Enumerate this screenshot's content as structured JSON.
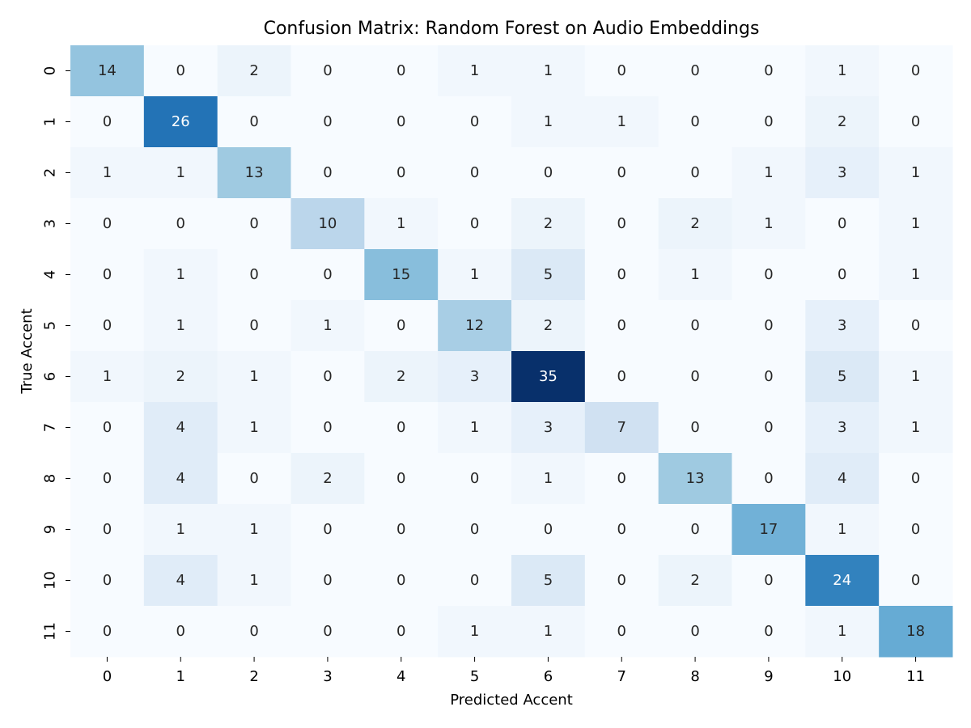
{
  "chart_data": {
    "type": "heatmap",
    "title": "Confusion Matrix: Random Forest on Audio Embeddings",
    "xlabel": "Predicted Accent",
    "ylabel": "True Accent",
    "x_categories": [
      "0",
      "1",
      "2",
      "3",
      "4",
      "5",
      "6",
      "7",
      "8",
      "9",
      "10",
      "11"
    ],
    "y_categories": [
      "0",
      "1",
      "2",
      "3",
      "4",
      "5",
      "6",
      "7",
      "8",
      "9",
      "10",
      "11"
    ],
    "values": [
      [
        14,
        0,
        2,
        0,
        0,
        1,
        1,
        0,
        0,
        0,
        1,
        0
      ],
      [
        0,
        26,
        0,
        0,
        0,
        0,
        1,
        1,
        0,
        0,
        2,
        0
      ],
      [
        1,
        1,
        13,
        0,
        0,
        0,
        0,
        0,
        0,
        1,
        3,
        1
      ],
      [
        0,
        0,
        0,
        10,
        1,
        0,
        2,
        0,
        2,
        1,
        0,
        1
      ],
      [
        0,
        1,
        0,
        0,
        15,
        1,
        5,
        0,
        1,
        0,
        0,
        1
      ],
      [
        0,
        1,
        0,
        1,
        0,
        12,
        2,
        0,
        0,
        0,
        3,
        0
      ],
      [
        1,
        2,
        1,
        0,
        2,
        3,
        35,
        0,
        0,
        0,
        5,
        1
      ],
      [
        0,
        4,
        1,
        0,
        0,
        1,
        3,
        7,
        0,
        0,
        3,
        1
      ],
      [
        0,
        4,
        0,
        2,
        0,
        0,
        1,
        0,
        13,
        0,
        4,
        0
      ],
      [
        0,
        1,
        1,
        0,
        0,
        0,
        0,
        0,
        0,
        17,
        1,
        0
      ],
      [
        0,
        4,
        1,
        0,
        0,
        0,
        5,
        0,
        2,
        0,
        24,
        0
      ],
      [
        0,
        0,
        0,
        0,
        0,
        1,
        1,
        0,
        0,
        0,
        1,
        18
      ]
    ],
    "value_range": [
      0,
      35
    ],
    "colormap": "Blues",
    "colorbar": false,
    "grid": false
  }
}
